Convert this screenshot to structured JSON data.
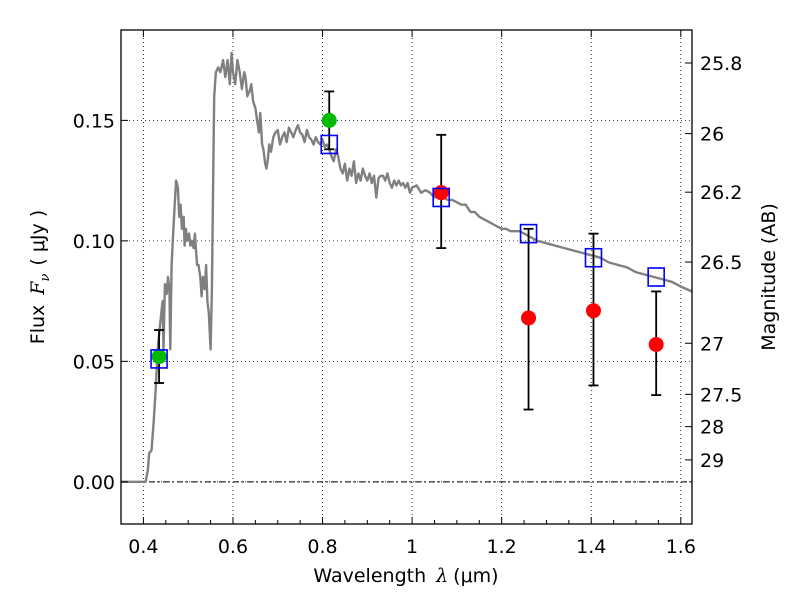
{
  "chart_data": {
    "type": "scatter",
    "xlabel": {
      "prefix": "Wavelength",
      "symbol": "λ",
      "units": "(μm)"
    },
    "ylabel": {
      "prefix": "Flux",
      "symbol": "F",
      "subscript": "ν",
      "units": "( μJy )"
    },
    "y2label": "Magnitude (AB)",
    "xlim": [
      0.35,
      1.625
    ],
    "ylim": [
      -0.0175,
      0.1875
    ],
    "x_ticks": [
      0.4,
      0.6,
      0.8,
      1.0,
      1.2,
      1.4,
      1.6
    ],
    "x_tick_labels": [
      "0.4",
      "0.6",
      "0.8",
      "1",
      "1.2",
      "1.4",
      "1.6"
    ],
    "y_ticks": [
      0.0,
      0.05,
      0.1,
      0.15
    ],
    "y_tick_labels": [
      "0.00",
      "0.05",
      "0.10",
      "0.15"
    ],
    "mag_ticks": [
      {
        "label": "25.8",
        "flux": 0.1738
      },
      {
        "label": "26",
        "flux": 0.1445
      },
      {
        "label": "26.2",
        "flux": 0.1202
      },
      {
        "label": "26.5",
        "flux": 0.0912
      },
      {
        "label": "27",
        "flux": 0.0575
      },
      {
        "label": "27.5",
        "flux": 0.0363
      },
      {
        "label": "28",
        "flux": 0.0229
      },
      {
        "label": "29",
        "flux": 0.0091
      }
    ],
    "grid": true,
    "series": [
      {
        "type": "line",
        "color": "#808080",
        "points": [
          [
            0.35,
            0.0
          ],
          [
            0.405,
            0.0
          ],
          [
            0.41,
            0.005
          ],
          [
            0.413,
            0.012
          ],
          [
            0.418,
            0.013
          ],
          [
            0.423,
            0.025
          ],
          [
            0.428,
            0.04
          ],
          [
            0.432,
            0.055
          ],
          [
            0.437,
            0.065
          ],
          [
            0.44,
            0.07
          ],
          [
            0.443,
            0.075
          ],
          [
            0.445,
            0.055
          ],
          [
            0.448,
            0.082
          ],
          [
            0.452,
            0.078
          ],
          [
            0.455,
            0.085
          ],
          [
            0.458,
            0.08
          ],
          [
            0.46,
            0.055
          ],
          [
            0.463,
            0.09
          ],
          [
            0.467,
            0.105
          ],
          [
            0.47,
            0.115
          ],
          [
            0.473,
            0.125
          ],
          [
            0.477,
            0.122
          ],
          [
            0.48,
            0.11
          ],
          [
            0.483,
            0.115
          ],
          [
            0.486,
            0.105
          ],
          [
            0.49,
            0.11
          ],
          [
            0.492,
            0.098
          ],
          [
            0.495,
            0.105
          ],
          [
            0.498,
            0.1
          ],
          [
            0.502,
            0.103
          ],
          [
            0.505,
            0.098
          ],
          [
            0.508,
            0.1
          ],
          [
            0.512,
            0.097
          ],
          [
            0.515,
            0.103
          ],
          [
            0.518,
            0.095
          ],
          [
            0.52,
            0.09
          ],
          [
            0.523,
            0.09
          ],
          [
            0.527,
            0.085
          ],
          [
            0.53,
            0.077
          ],
          [
            0.533,
            0.085
          ],
          [
            0.537,
            0.08
          ],
          [
            0.54,
            0.09
          ],
          [
            0.543,
            0.075
          ],
          [
            0.546,
            0.07
          ],
          [
            0.55,
            0.055
          ],
          [
            0.553,
            0.08
          ],
          [
            0.556,
            0.13
          ],
          [
            0.558,
            0.16
          ],
          [
            0.562,
            0.17
          ],
          [
            0.567,
            0.172
          ],
          [
            0.572,
            0.17
          ],
          [
            0.578,
            0.175
          ],
          [
            0.583,
            0.168
          ],
          [
            0.588,
            0.175
          ],
          [
            0.593,
            0.165
          ],
          [
            0.597,
            0.178
          ],
          [
            0.6,
            0.17
          ],
          [
            0.605,
            0.165
          ],
          [
            0.61,
            0.175
          ],
          [
            0.615,
            0.17
          ],
          [
            0.62,
            0.163
          ],
          [
            0.625,
            0.17
          ],
          [
            0.628,
            0.168
          ],
          [
            0.632,
            0.16
          ],
          [
            0.637,
            0.162
          ],
          [
            0.641,
            0.165
          ],
          [
            0.645,
            0.158
          ],
          [
            0.65,
            0.155
          ],
          [
            0.654,
            0.15
          ],
          [
            0.658,
            0.145
          ],
          [
            0.661,
            0.153
          ],
          [
            0.665,
            0.14
          ],
          [
            0.668,
            0.138
          ],
          [
            0.672,
            0.132
          ],
          [
            0.675,
            0.13
          ],
          [
            0.678,
            0.134
          ],
          [
            0.681,
            0.14
          ],
          [
            0.685,
            0.137
          ],
          [
            0.69,
            0.143
          ],
          [
            0.695,
            0.145
          ],
          [
            0.7,
            0.146
          ],
          [
            0.705,
            0.14
          ],
          [
            0.71,
            0.143
          ],
          [
            0.715,
            0.145
          ],
          [
            0.72,
            0.141
          ],
          [
            0.725,
            0.147
          ],
          [
            0.73,
            0.145
          ],
          [
            0.735,
            0.143
          ],
          [
            0.74,
            0.146
          ],
          [
            0.745,
            0.148
          ],
          [
            0.75,
            0.145
          ],
          [
            0.755,
            0.144
          ],
          [
            0.76,
            0.141
          ],
          [
            0.765,
            0.146
          ],
          [
            0.77,
            0.143
          ],
          [
            0.775,
            0.142
          ],
          [
            0.78,
            0.14
          ],
          [
            0.785,
            0.143
          ],
          [
            0.79,
            0.141
          ],
          [
            0.795,
            0.14
          ],
          [
            0.8,
            0.142
          ],
          [
            0.805,
            0.139
          ],
          [
            0.81,
            0.14
          ],
          [
            0.815,
            0.138
          ],
          [
            0.82,
            0.135
          ],
          [
            0.825,
            0.133
          ],
          [
            0.83,
            0.138
          ],
          [
            0.835,
            0.135
          ],
          [
            0.84,
            0.13
          ],
          [
            0.845,
            0.128
          ],
          [
            0.85,
            0.132
          ],
          [
            0.855,
            0.125
          ],
          [
            0.86,
            0.13
          ],
          [
            0.865,
            0.127
          ],
          [
            0.87,
            0.133
          ],
          [
            0.875,
            0.124
          ],
          [
            0.88,
            0.128
          ],
          [
            0.885,
            0.125
          ],
          [
            0.89,
            0.13
          ],
          [
            0.895,
            0.127
          ],
          [
            0.9,
            0.125
          ],
          [
            0.905,
            0.128
          ],
          [
            0.91,
            0.124
          ],
          [
            0.915,
            0.127
          ],
          [
            0.92,
            0.118
          ],
          [
            0.925,
            0.126
          ],
          [
            0.93,
            0.127
          ],
          [
            0.935,
            0.127
          ],
          [
            0.94,
            0.125
          ],
          [
            0.945,
            0.128
          ],
          [
            0.95,
            0.124
          ],
          [
            0.955,
            0.122
          ],
          [
            0.96,
            0.125
          ],
          [
            0.965,
            0.123
          ],
          [
            0.97,
            0.125
          ],
          [
            0.975,
            0.123
          ],
          [
            0.98,
            0.124
          ],
          [
            0.985,
            0.122
          ],
          [
            0.99,
            0.124
          ],
          [
            0.995,
            0.12
          ],
          [
            1.0,
            0.122
          ],
          [
            1.01,
            0.123
          ],
          [
            1.02,
            0.12
          ],
          [
            1.03,
            0.121
          ],
          [
            1.04,
            0.12
          ],
          [
            1.05,
            0.118
          ],
          [
            1.06,
            0.12
          ],
          [
            1.07,
            0.118
          ],
          [
            1.08,
            0.117
          ],
          [
            1.09,
            0.117
          ],
          [
            1.1,
            0.116
          ],
          [
            1.11,
            0.115
          ],
          [
            1.12,
            0.115
          ],
          [
            1.13,
            0.112
          ],
          [
            1.14,
            0.112
          ],
          [
            1.15,
            0.11
          ],
          [
            1.16,
            0.109
          ],
          [
            1.17,
            0.108
          ],
          [
            1.18,
            0.107
          ],
          [
            1.19,
            0.106
          ],
          [
            1.2,
            0.105
          ],
          [
            1.21,
            0.105
          ],
          [
            1.22,
            0.104
          ],
          [
            1.23,
            0.104
          ],
          [
            1.24,
            0.104
          ],
          [
            1.25,
            0.103
          ],
          [
            1.26,
            0.102
          ],
          [
            1.27,
            0.101
          ],
          [
            1.28,
            0.1
          ],
          [
            1.3,
            0.099
          ],
          [
            1.32,
            0.098
          ],
          [
            1.34,
            0.097
          ],
          [
            1.36,
            0.096
          ],
          [
            1.38,
            0.095
          ],
          [
            1.4,
            0.094
          ],
          [
            1.42,
            0.093
          ],
          [
            1.44,
            0.091
          ],
          [
            1.46,
            0.09
          ],
          [
            1.48,
            0.089
          ],
          [
            1.5,
            0.087
          ],
          [
            1.52,
            0.086
          ],
          [
            1.54,
            0.085
          ],
          [
            1.56,
            0.084
          ],
          [
            1.58,
            0.083
          ],
          [
            1.6,
            0.081
          ],
          [
            1.625,
            0.079
          ]
        ]
      },
      {
        "type": "points",
        "color": "#00bb00",
        "marker": "circle",
        "x": [
          0.435,
          0.815
        ],
        "y": [
          0.052,
          0.15
        ],
        "errors": [
          [
            0.041,
            0.063
          ],
          [
            0.138,
            0.162
          ]
        ]
      },
      {
        "type": "points",
        "color": "#ff0000",
        "marker": "circle",
        "x": [
          1.065,
          1.26,
          1.405,
          1.545
        ],
        "y": [
          0.12,
          0.068,
          0.071,
          0.057
        ],
        "errors": [
          [
            0.097,
            0.144
          ],
          [
            0.03,
            0.105
          ],
          [
            0.04,
            0.103
          ],
          [
            0.036,
            0.079
          ]
        ]
      },
      {
        "type": "points",
        "color": "#0000ff",
        "marker": "open-square",
        "x": [
          0.435,
          0.815,
          1.065,
          1.26,
          1.405,
          1.545
        ],
        "y": [
          0.051,
          0.14,
          0.118,
          0.103,
          0.093,
          0.085
        ]
      }
    ]
  }
}
